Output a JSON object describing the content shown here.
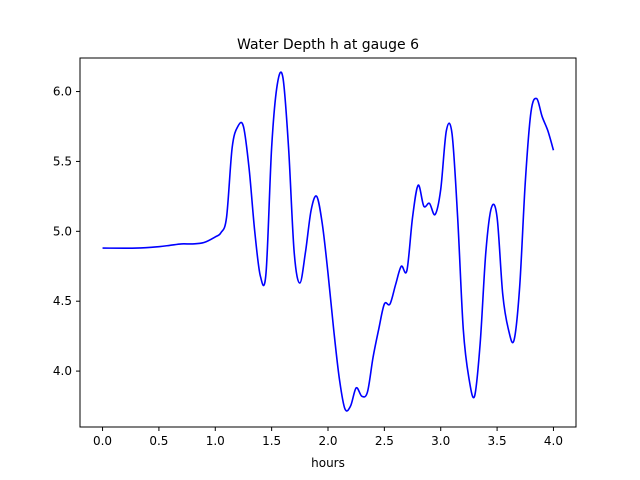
{
  "chart_data": {
    "type": "line",
    "title": "Water Depth h at gauge 6",
    "xlabel": "hours",
    "ylabel": "",
    "xlim": [
      -0.2,
      4.2
    ],
    "ylim": [
      3.6,
      6.24
    ],
    "xticks": [
      0.0,
      0.5,
      1.0,
      1.5,
      2.0,
      2.5,
      3.0,
      3.5,
      4.0
    ],
    "xtick_labels": [
      "0.0",
      "0.5",
      "1.0",
      "1.5",
      "2.0",
      "2.5",
      "3.0",
      "3.5",
      "4.0"
    ],
    "yticks": [
      4.0,
      4.5,
      5.0,
      5.5,
      6.0
    ],
    "ytick_labels": [
      "4.0",
      "4.5",
      "5.0",
      "5.5",
      "6.0"
    ],
    "grid": false,
    "colors": {
      "line": "#0000ff",
      "axes": "#000000"
    },
    "series": [
      {
        "x": [
          0.0,
          0.3,
          0.5,
          0.6,
          0.7,
          0.8,
          0.9,
          1.0,
          1.05,
          1.1,
          1.15,
          1.2,
          1.25,
          1.3,
          1.35,
          1.4,
          1.45,
          1.5,
          1.55,
          1.6,
          1.65,
          1.7,
          1.75,
          1.8,
          1.85,
          1.9,
          1.95,
          2.0,
          2.05,
          2.1,
          2.15,
          2.2,
          2.25,
          2.3,
          2.35,
          2.4,
          2.45,
          2.5,
          2.55,
          2.6,
          2.65,
          2.7,
          2.75,
          2.8,
          2.85,
          2.9,
          2.95,
          3.0,
          3.05,
          3.1,
          3.15,
          3.2,
          3.25,
          3.3,
          3.35,
          3.4,
          3.45,
          3.5,
          3.55,
          3.6,
          3.65,
          3.7,
          3.75,
          3.8,
          3.85,
          3.9,
          3.95,
          4.0
        ],
        "y": [
          4.88,
          4.88,
          4.89,
          4.9,
          4.91,
          4.91,
          4.92,
          4.96,
          4.99,
          5.1,
          5.6,
          5.75,
          5.75,
          5.45,
          5.0,
          4.68,
          4.7,
          5.6,
          6.05,
          6.1,
          5.6,
          4.85,
          4.63,
          4.85,
          5.15,
          5.25,
          5.05,
          4.7,
          4.3,
          3.95,
          3.73,
          3.75,
          3.88,
          3.82,
          3.85,
          4.1,
          4.3,
          4.48,
          4.48,
          4.62,
          4.75,
          4.72,
          5.1,
          5.33,
          5.18,
          5.2,
          5.12,
          5.3,
          5.72,
          5.7,
          5.1,
          4.3,
          3.95,
          3.82,
          4.2,
          4.85,
          5.17,
          5.1,
          4.55,
          4.3,
          4.22,
          4.6,
          5.35,
          5.85,
          5.95,
          5.82,
          5.72,
          5.58
        ]
      }
    ]
  }
}
